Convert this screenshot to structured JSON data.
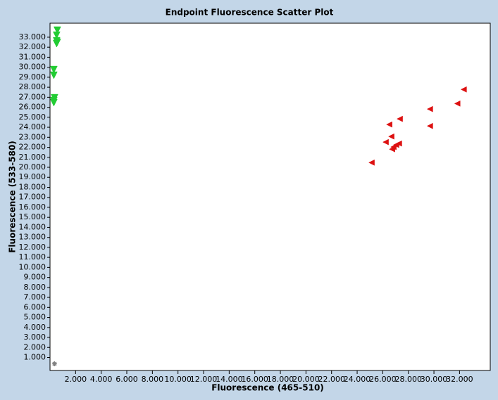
{
  "chart_data": {
    "type": "scatter",
    "title": "Endpoint Fluorescence Scatter Plot",
    "x_label": "Fluorescence (465-510)",
    "y_label": "Fluorescence (533-580)",
    "xlim": [
      0,
      34400
    ],
    "ylim": [
      -300,
      34400
    ],
    "xticks": [
      {
        "value": 2000,
        "label": "2.000"
      },
      {
        "value": 4000,
        "label": "4.000"
      },
      {
        "value": 6000,
        "label": "6.000"
      },
      {
        "value": 8000,
        "label": "8.000"
      },
      {
        "value": 10000,
        "label": "10.000"
      },
      {
        "value": 12000,
        "label": "12.000"
      },
      {
        "value": 14000,
        "label": "14.000"
      },
      {
        "value": 16000,
        "label": "16.000"
      },
      {
        "value": 18000,
        "label": "18.000"
      },
      {
        "value": 20000,
        "label": "20.000"
      },
      {
        "value": 22000,
        "label": "22.000"
      },
      {
        "value": 24000,
        "label": "24.000"
      },
      {
        "value": 26000,
        "label": "26.000"
      },
      {
        "value": 28000,
        "label": "28.000"
      },
      {
        "value": 30000,
        "label": "30.000"
      },
      {
        "value": 32000,
        "label": "32.000"
      }
    ],
    "yticks": [
      {
        "value": 1000,
        "label": "1.000"
      },
      {
        "value": 2000,
        "label": "2.000"
      },
      {
        "value": 3000,
        "label": "3.000"
      },
      {
        "value": 4000,
        "label": "4.000"
      },
      {
        "value": 5000,
        "label": "5.000"
      },
      {
        "value": 6000,
        "label": "6.000"
      },
      {
        "value": 7000,
        "label": "7.000"
      },
      {
        "value": 8000,
        "label": "8.000"
      },
      {
        "value": 9000,
        "label": "9.000"
      },
      {
        "value": 10000,
        "label": "10.000"
      },
      {
        "value": 11000,
        "label": "11.000"
      },
      {
        "value": 12000,
        "label": "12.000"
      },
      {
        "value": 13000,
        "label": "13.000"
      },
      {
        "value": 14000,
        "label": "14.000"
      },
      {
        "value": 15000,
        "label": "15.000"
      },
      {
        "value": 16000,
        "label": "16.000"
      },
      {
        "value": 17000,
        "label": "17.000"
      },
      {
        "value": 18000,
        "label": "18.000"
      },
      {
        "value": 19000,
        "label": "19.000"
      },
      {
        "value": 20000,
        "label": "20.000"
      },
      {
        "value": 21000,
        "label": "21.000"
      },
      {
        "value": 22000,
        "label": "22.000"
      },
      {
        "value": 23000,
        "label": "23.000"
      },
      {
        "value": 24000,
        "label": "24.000"
      },
      {
        "value": 25000,
        "label": "25.000"
      },
      {
        "value": 26000,
        "label": "26.000"
      },
      {
        "value": 27000,
        "label": "27.000"
      },
      {
        "value": 28000,
        "label": "28.000"
      },
      {
        "value": 29000,
        "label": "29.000"
      },
      {
        "value": 30000,
        "label": "30.000"
      },
      {
        "value": 31000,
        "label": "31.000"
      },
      {
        "value": 32000,
        "label": "32.000"
      },
      {
        "value": 33000,
        "label": "33.000"
      }
    ],
    "series": [
      {
        "color": "#22cc33",
        "marker": "triangle-down",
        "x": [
          571,
          516,
          516,
          571,
          516,
          297,
          297,
          352,
          297,
          297
        ],
        "values": [
          33700,
          33200,
          32640,
          32500,
          32360,
          29760,
          29200,
          26950,
          26670,
          26460
        ]
      },
      {
        "color": "#dd1111",
        "marker": "triangle-left",
        "x": [
          32330,
          31830,
          29690,
          29690,
          27330,
          26510,
          26670,
          26230,
          27270,
          27050,
          26840,
          26730,
          25130
        ],
        "values": [
          27780,
          26370,
          25820,
          24130,
          24840,
          24280,
          23080,
          22520,
          22380,
          22240,
          22030,
          21810,
          20470
        ]
      },
      {
        "color": "#808080",
        "marker": "star",
        "x": [
          352
        ],
        "values": [
          366
        ]
      }
    ]
  }
}
